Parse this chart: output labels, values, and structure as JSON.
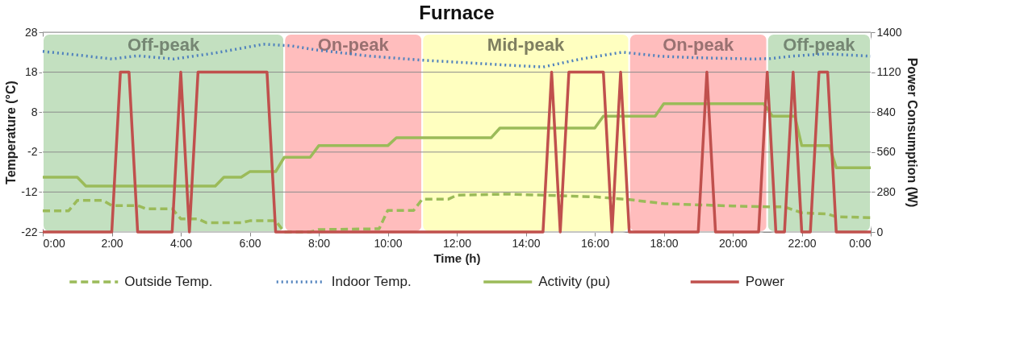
{
  "chart_data": {
    "type": "line",
    "title": "Furnace",
    "xlabel": "Time (h)",
    "ylabel": "Temperature (°C)",
    "y2label": "Power Consumption (W)",
    "xlim": [
      0,
      24
    ],
    "xticks": [
      {
        "value": 0,
        "label": "0:00"
      },
      {
        "value": 2,
        "label": "2:00"
      },
      {
        "value": 4,
        "label": "4:00"
      },
      {
        "value": 6,
        "label": "6:00"
      },
      {
        "value": 8,
        "label": "8:00"
      },
      {
        "value": 10,
        "label": "10:00"
      },
      {
        "value": 12,
        "label": "12:00"
      },
      {
        "value": 14,
        "label": "14:00"
      },
      {
        "value": 16,
        "label": "16:00"
      },
      {
        "value": 18,
        "label": "18:00"
      },
      {
        "value": 20,
        "label": "20:00"
      },
      {
        "value": 22,
        "label": "22:00"
      },
      {
        "value": 24,
        "label": "0:00"
      }
    ],
    "ylim": [
      -22,
      28
    ],
    "yticks": [
      -22,
      -12,
      -2,
      8,
      18,
      28
    ],
    "y2lim": [
      0,
      1400
    ],
    "y2ticks": [
      0,
      280,
      560,
      840,
      {
        "value": 1120,
        "label": "1120"
      },
      {
        "value": 1400,
        "label": "1400"
      }
    ],
    "grid": "y",
    "legend": "bottom",
    "marker": "none",
    "bands": [
      {
        "axis": "x",
        "from": 0,
        "to": 7,
        "label": "Off-peak",
        "color": "#c3e0c0"
      },
      {
        "axis": "x",
        "from": 7,
        "to": 11,
        "label": "On-peak",
        "color": "#ffbdbd"
      },
      {
        "axis": "x",
        "from": 11,
        "to": 17,
        "label": "Mid-peak",
        "color": "#ffffc0"
      },
      {
        "axis": "x",
        "from": 17,
        "to": 21,
        "label": "On-peak",
        "color": "#ffbdbd"
      },
      {
        "axis": "x",
        "from": 21,
        "to": 24,
        "label": "Off-peak",
        "color": "#c3e0c0"
      }
    ],
    "series": [
      {
        "name": "Outside Temp.",
        "color": "#9bbb59",
        "line_style": "dashed",
        "x": [
          0,
          0.75,
          1,
          1.75,
          2,
          2.75,
          3,
          3.75,
          4,
          4.5,
          4.75,
          5.75,
          6,
          6.75,
          7,
          7.75,
          8,
          9.75,
          10,
          10.75,
          11,
          11.75,
          12,
          13.5,
          14.5,
          16,
          17,
          18,
          20,
          21,
          21.5,
          22,
          22.75,
          23,
          24
        ],
        "values": [
          -16.7,
          -16.7,
          -14.1,
          -14.1,
          -15.4,
          -15.4,
          -16.2,
          -16.2,
          -18.7,
          -18.7,
          -19.7,
          -19.7,
          -19.2,
          -19.2,
          -22,
          -22,
          -21.4,
          -21.2,
          -16.6,
          -16.6,
          -13.8,
          -13.8,
          -12.8,
          -12.5,
          -12.8,
          -13.2,
          -13.9,
          -14.9,
          -15.5,
          -15.7,
          -15.7,
          -17.2,
          -17.5,
          -18.2,
          -18.4
        ]
      },
      {
        "name": "Indoor Temp.",
        "color": "#4f81bd",
        "line_style": "dotted",
        "x": [
          0,
          1,
          2,
          2.75,
          3.8,
          5,
          6.4,
          7.2,
          7.9,
          9.5,
          11,
          13.8,
          14.5,
          15.6,
          16.8,
          17.9,
          19,
          20.6,
          21.1,
          21.7,
          22.7,
          24
        ],
        "values": [
          23.2,
          22.3,
          21.3,
          22.1,
          21.3,
          22.8,
          25,
          24.6,
          23.6,
          22,
          21,
          19.6,
          19.3,
          21.3,
          23,
          22,
          21.6,
          21.3,
          21.4,
          22,
          22.6,
          22
        ]
      },
      {
        "name": "Activity (pu)",
        "color": "#9bbb59",
        "line_style": "solid",
        "x": [
          0,
          1,
          1.25,
          5,
          5.25,
          5.75,
          6,
          6.75,
          7,
          7.75,
          8,
          10,
          10.25,
          13,
          13.25,
          16,
          16.25,
          17.75,
          18,
          20.9,
          21.15,
          21.8,
          22,
          22.8,
          23,
          24
        ],
        "values": [
          -8.3,
          -8.3,
          -10.5,
          -10.5,
          -8.3,
          -8.3,
          -6.9,
          -6.9,
          -3.3,
          -3.3,
          -0.4,
          -0.4,
          1.6,
          1.6,
          4,
          4,
          7,
          7,
          10.1,
          10.1,
          7,
          7,
          -0.4,
          -0.4,
          -5.9,
          -5.9
        ]
      },
      {
        "name": "Power",
        "color": "#c0504d",
        "line_style": "solid",
        "axis": "y2",
        "x": [
          0,
          2,
          2.25,
          2.5,
          2.75,
          3.75,
          4,
          4.25,
          4.5,
          6.5,
          6.75,
          14.5,
          14.75,
          15,
          15.25,
          16.25,
          16.5,
          16.75,
          17,
          19,
          19.25,
          19.5,
          20.75,
          21,
          21.25,
          21.5,
          21.75,
          22,
          22.25,
          22.5,
          22.75,
          23,
          24
        ],
        "values": [
          0,
          0,
          1120,
          1120,
          0,
          0,
          1120,
          0,
          1120,
          1120,
          0,
          0,
          1120,
          0,
          1120,
          1120,
          0,
          1120,
          0,
          0,
          1120,
          0,
          0,
          1120,
          0,
          0,
          1120,
          0,
          0,
          1120,
          1120,
          0,
          0
        ]
      }
    ]
  }
}
